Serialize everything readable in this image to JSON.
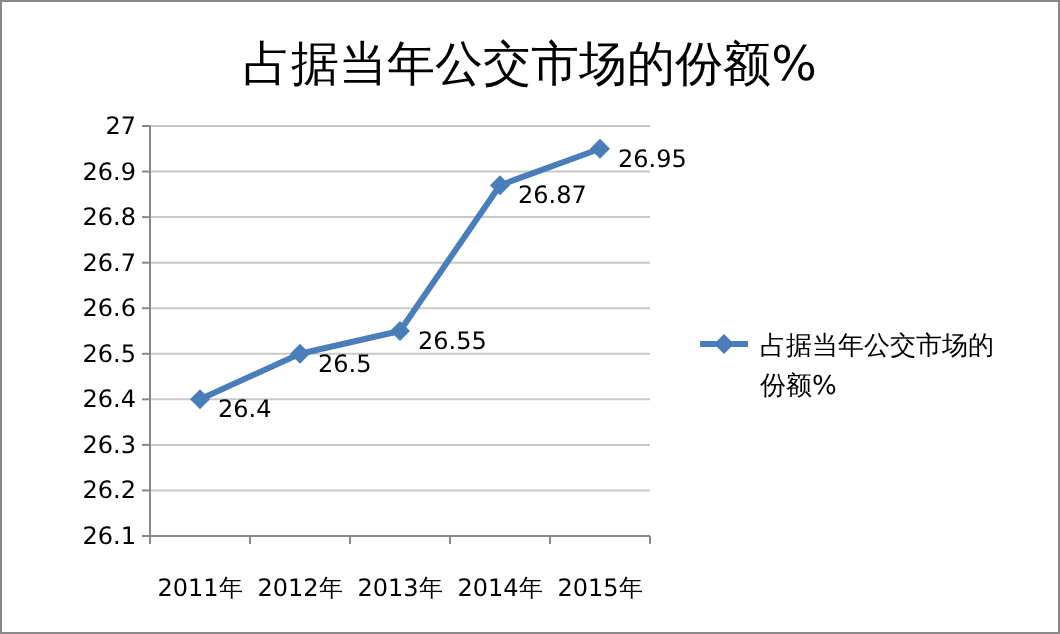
{
  "chart_data": {
    "type": "line",
    "title": "占据当年公交市场的份额%",
    "categories": [
      "2011年",
      "2012年",
      "2013年",
      "2014年",
      "2015年"
    ],
    "series": [
      {
        "name": "占据当年公交市场的份额%",
        "color": "#4a7ebb",
        "values": [
          26.4,
          26.5,
          26.55,
          26.87,
          26.95
        ]
      }
    ],
    "ylim": [
      26.1,
      27
    ],
    "yticks": [
      26.1,
      26.2,
      26.3,
      26.4,
      26.5,
      26.6,
      26.7,
      26.8,
      26.9,
      27
    ],
    "grid": "y",
    "legend": "right",
    "marker": "diamond",
    "data_labels": true
  }
}
